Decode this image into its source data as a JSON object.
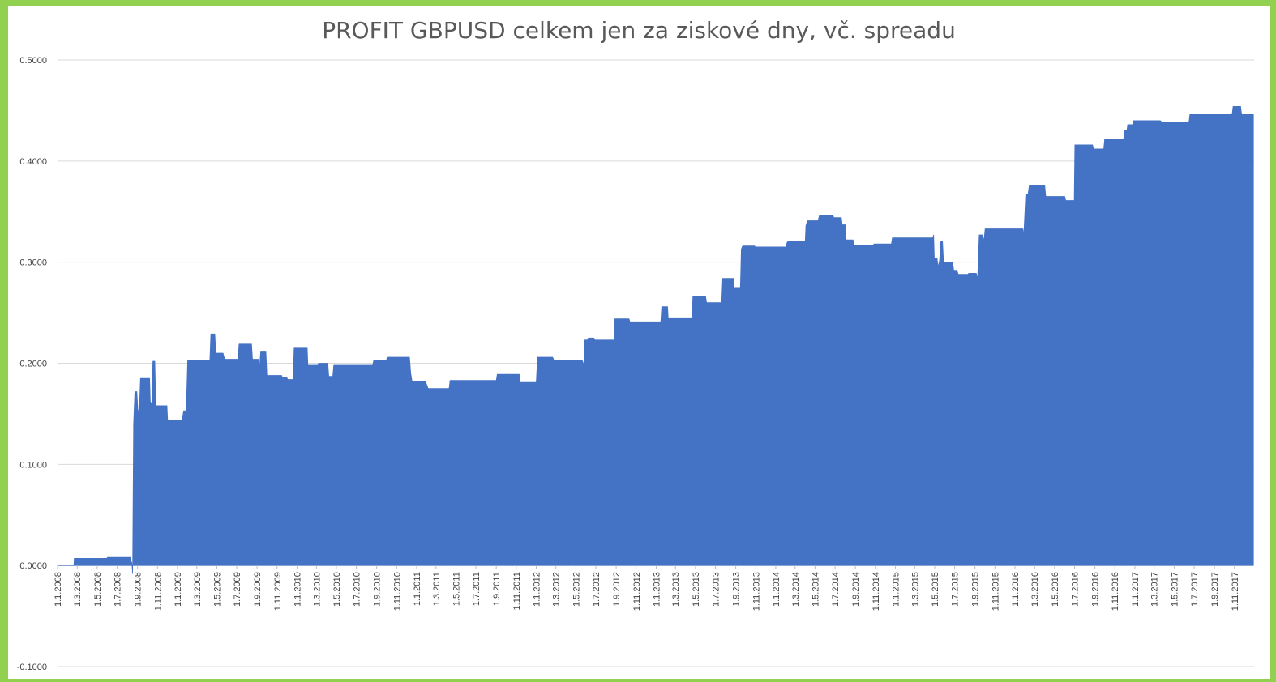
{
  "chart_data": {
    "type": "area",
    "title": "PROFIT GBPUSD celkem jen za ziskové dny, vč. spreadu",
    "xlabel": "",
    "ylabel": "",
    "ylim": [
      -0.1,
      0.5
    ],
    "y_ticks": [
      "-0.1000",
      "0.0000",
      "0.1000",
      "0.2000",
      "0.3000",
      "0.4000",
      "0.5000"
    ],
    "x_ticks": [
      "1.1.2008",
      "1.3.2008",
      "1.5.2008",
      "1.7.2008",
      "1.9.2008",
      "1.11.2008",
      "1.1.2009",
      "1.3.2009",
      "1.5.2009",
      "1.7.2009",
      "1.9.2009",
      "1.11.2009",
      "1.1.2010",
      "1.3.2010",
      "1.5.2010",
      "1.7.2010",
      "1.9.2010",
      "1.11.2010",
      "1.1.2011",
      "1.3.2011",
      "1.5.2011",
      "1.7.2011",
      "1.9.2011",
      "1.11.2011",
      "1.1.2012",
      "1.3.2012",
      "1.5.2012",
      "1.7.2012",
      "1.9.2012",
      "1.11.2012",
      "1.1.2013",
      "1.3.2013",
      "1.5.2013",
      "1.7.2013",
      "1.9.2013",
      "1.11.2013",
      "1.1.2014",
      "1.3.2014",
      "1.5.2014",
      "1.7.2014",
      "1.9.2014",
      "1.11.2014",
      "1.1.2015",
      "1.3.2015",
      "1.5.2015",
      "1.7.2015",
      "1.9.2015",
      "1.11.2015",
      "1.1.2016",
      "1.3.2016",
      "1.5.2016",
      "1.7.2016",
      "1.9.2016",
      "1.11.2016",
      "1.1.2017",
      "1.3.2017",
      "1.5.2017",
      "1.7.2017",
      "1.9.2017",
      "1.11.2017"
    ],
    "grid": true,
    "legend": "none",
    "fill_color": "#4472c4",
    "series": [
      {
        "points": [
          [
            "2008-01-01",
            0.0
          ],
          [
            "2008-02-20",
            0.0
          ],
          [
            "2008-02-21",
            0.007
          ],
          [
            "2008-05-31",
            0.007
          ],
          [
            "2008-06-01",
            0.008
          ],
          [
            "2008-08-10",
            0.008
          ],
          [
            "2008-08-15",
            0.002
          ],
          [
            "2008-08-17",
            -0.008
          ],
          [
            "2008-08-20",
            0.14
          ],
          [
            "2008-08-24",
            0.172
          ],
          [
            "2008-08-30",
            0.172
          ],
          [
            "2008-09-02",
            0.155
          ],
          [
            "2008-09-06",
            0.148
          ],
          [
            "2008-09-10",
            0.185
          ],
          [
            "2008-10-08",
            0.185
          ],
          [
            "2008-10-10",
            0.162
          ],
          [
            "2008-10-15",
            0.16
          ],
          [
            "2008-10-18",
            0.202
          ],
          [
            "2008-10-24",
            0.202
          ],
          [
            "2008-10-27",
            0.158
          ],
          [
            "2008-11-30",
            0.158
          ],
          [
            "2008-12-02",
            0.144
          ],
          [
            "2009-01-15",
            0.144
          ],
          [
            "2009-01-20",
            0.153
          ],
          [
            "2009-01-28",
            0.153
          ],
          [
            "2009-02-01",
            0.203
          ],
          [
            "2009-04-10",
            0.203
          ],
          [
            "2009-04-13",
            0.229
          ],
          [
            "2009-04-25",
            0.229
          ],
          [
            "2009-04-28",
            0.21
          ],
          [
            "2009-05-20",
            0.21
          ],
          [
            "2009-05-25",
            0.204
          ],
          [
            "2009-07-05",
            0.204
          ],
          [
            "2009-07-08",
            0.219
          ],
          [
            "2009-08-15",
            0.219
          ],
          [
            "2009-08-18",
            0.204
          ],
          [
            "2009-09-05",
            0.204
          ],
          [
            "2009-09-08",
            0.194
          ],
          [
            "2009-09-12",
            0.212
          ],
          [
            "2009-09-28",
            0.212
          ],
          [
            "2009-10-01",
            0.188
          ],
          [
            "2009-11-15",
            0.188
          ],
          [
            "2009-11-17",
            0.186
          ],
          [
            "2009-12-01",
            0.186
          ],
          [
            "2009-12-03",
            0.184
          ],
          [
            "2009-12-20",
            0.184
          ],
          [
            "2009-12-23",
            0.215
          ],
          [
            "2010-02-01",
            0.215
          ],
          [
            "2010-02-03",
            0.198
          ],
          [
            "2010-03-05",
            0.198
          ],
          [
            "2010-03-08",
            0.2
          ],
          [
            "2010-04-05",
            0.2
          ],
          [
            "2010-04-08",
            0.187
          ],
          [
            "2010-04-20",
            0.187
          ],
          [
            "2010-04-23",
            0.198
          ],
          [
            "2010-08-20",
            0.198
          ],
          [
            "2010-08-23",
            0.203
          ],
          [
            "2010-10-01",
            0.203
          ],
          [
            "2010-10-03",
            0.206
          ],
          [
            "2010-12-10",
            0.206
          ],
          [
            "2010-12-14",
            0.19
          ],
          [
            "2010-12-18",
            0.182
          ],
          [
            "2011-01-28",
            0.182
          ],
          [
            "2011-02-05",
            0.175
          ],
          [
            "2011-04-10",
            0.175
          ],
          [
            "2011-04-13",
            0.183
          ],
          [
            "2011-09-01",
            0.183
          ],
          [
            "2011-09-04",
            0.189
          ],
          [
            "2011-11-10",
            0.189
          ],
          [
            "2011-11-13",
            0.181
          ],
          [
            "2012-01-01",
            0.181
          ],
          [
            "2012-01-05",
            0.206
          ],
          [
            "2012-02-20",
            0.206
          ],
          [
            "2012-02-24",
            0.203
          ],
          [
            "2012-05-20",
            0.203
          ],
          [
            "2012-05-25",
            0.198
          ],
          [
            "2012-05-28",
            0.223
          ],
          [
            "2012-06-05",
            0.223
          ],
          [
            "2012-06-08",
            0.225
          ],
          [
            "2012-06-25",
            0.225
          ],
          [
            "2012-06-28",
            0.223
          ],
          [
            "2012-08-25",
            0.223
          ],
          [
            "2012-08-28",
            0.244
          ],
          [
            "2012-10-10",
            0.244
          ],
          [
            "2012-10-13",
            0.241
          ],
          [
            "2013-01-15",
            0.241
          ],
          [
            "2013-01-18",
            0.256
          ],
          [
            "2013-02-05",
            0.256
          ],
          [
            "2013-02-07",
            0.243
          ],
          [
            "2013-02-10",
            0.245
          ],
          [
            "2013-04-20",
            0.245
          ],
          [
            "2013-04-23",
            0.266
          ],
          [
            "2013-06-01",
            0.266
          ],
          [
            "2013-06-04",
            0.26
          ],
          [
            "2013-07-20",
            0.26
          ],
          [
            "2013-07-23",
            0.284
          ],
          [
            "2013-08-25",
            0.284
          ],
          [
            "2013-08-27",
            0.275
          ],
          [
            "2013-09-15",
            0.275
          ],
          [
            "2013-09-18",
            0.313
          ],
          [
            "2013-09-22",
            0.316
          ],
          [
            "2013-10-28",
            0.316
          ],
          [
            "2013-10-31",
            0.315
          ],
          [
            "2014-02-01",
            0.315
          ],
          [
            "2014-02-04",
            0.319
          ],
          [
            "2014-02-08",
            0.321
          ],
          [
            "2014-04-01",
            0.321
          ],
          [
            "2014-04-03",
            0.336
          ],
          [
            "2014-04-08",
            0.341
          ],
          [
            "2014-05-10",
            0.341
          ],
          [
            "2014-05-14",
            0.346
          ],
          [
            "2014-06-25",
            0.346
          ],
          [
            "2014-06-27",
            0.344
          ],
          [
            "2014-07-20",
            0.344
          ],
          [
            "2014-07-23",
            0.337
          ],
          [
            "2014-08-01",
            0.337
          ],
          [
            "2014-08-04",
            0.322
          ],
          [
            "2014-08-25",
            0.322
          ],
          [
            "2014-08-28",
            0.317
          ],
          [
            "2014-10-25",
            0.317
          ],
          [
            "2014-10-28",
            0.318
          ],
          [
            "2014-12-20",
            0.318
          ],
          [
            "2014-12-23",
            0.324
          ],
          [
            "2015-04-25",
            0.324
          ],
          [
            "2015-04-28",
            0.327
          ],
          [
            "2015-04-30",
            0.304
          ],
          [
            "2015-05-08",
            0.304
          ],
          [
            "2015-05-12",
            0.295
          ],
          [
            "2015-05-16",
            0.302
          ],
          [
            "2015-05-20",
            0.321
          ],
          [
            "2015-05-25",
            0.321
          ],
          [
            "2015-05-28",
            0.3
          ],
          [
            "2015-06-25",
            0.3
          ],
          [
            "2015-06-28",
            0.292
          ],
          [
            "2015-07-08",
            0.292
          ],
          [
            "2015-07-12",
            0.288
          ],
          [
            "2015-08-10",
            0.288
          ],
          [
            "2015-08-13",
            0.289
          ],
          [
            "2015-09-05",
            0.289
          ],
          [
            "2015-09-09",
            0.283
          ],
          [
            "2015-09-14",
            0.327
          ],
          [
            "2015-09-25",
            0.327
          ],
          [
            "2015-09-28",
            0.32
          ],
          [
            "2015-10-02",
            0.333
          ],
          [
            "2016-01-25",
            0.333
          ],
          [
            "2016-01-28",
            0.327
          ],
          [
            "2016-02-03",
            0.367
          ],
          [
            "2016-02-10",
            0.367
          ],
          [
            "2016-02-14",
            0.376
          ],
          [
            "2016-04-01",
            0.376
          ],
          [
            "2016-04-04",
            0.365
          ],
          [
            "2016-06-01",
            0.365
          ],
          [
            "2016-06-04",
            0.361
          ],
          [
            "2016-06-30",
            0.361
          ],
          [
            "2016-07-02",
            0.416
          ],
          [
            "2016-08-25",
            0.416
          ],
          [
            "2016-08-28",
            0.412
          ],
          [
            "2016-09-28",
            0.412
          ],
          [
            "2016-10-01",
            0.422
          ],
          [
            "2016-11-28",
            0.422
          ],
          [
            "2016-12-01",
            0.43
          ],
          [
            "2016-12-08",
            0.43
          ],
          [
            "2016-12-10",
            0.436
          ],
          [
            "2016-12-25",
            0.436
          ],
          [
            "2016-12-28",
            0.44
          ],
          [
            "2017-03-20",
            0.44
          ],
          [
            "2017-03-23",
            0.438
          ],
          [
            "2017-06-15",
            0.438
          ],
          [
            "2017-06-18",
            0.446
          ],
          [
            "2017-10-25",
            0.446
          ],
          [
            "2017-10-28",
            0.454
          ],
          [
            "2017-11-20",
            0.454
          ],
          [
            "2017-11-23",
            0.446
          ],
          [
            "2017-12-29",
            0.446
          ]
        ]
      }
    ]
  }
}
